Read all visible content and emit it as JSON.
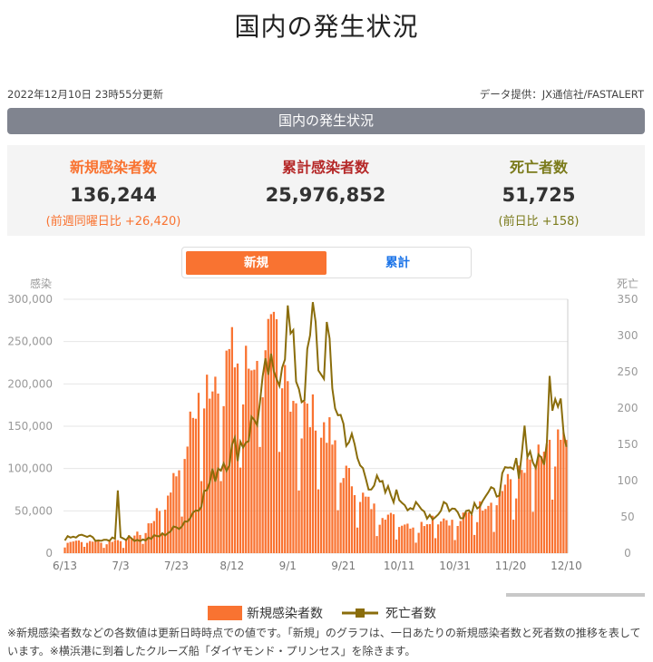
{
  "title": "国内の発生状況",
  "updated": "2022年12月10日 23時55分更新",
  "source": "データ提供：JX通信社/FASTALERT",
  "section_header": "国内の発生状況",
  "stats": {
    "new": {
      "label": "新規感染者数",
      "value": "136,244",
      "sub": "(前週同曜日比 +26,420)"
    },
    "total": {
      "label": "累計感染者数",
      "value": "25,976,852"
    },
    "deaths": {
      "label": "死亡者数",
      "value": "51,725",
      "sub": "(前日比 +158)"
    }
  },
  "tabs": {
    "new": "新規",
    "cumulative": "累計"
  },
  "legend": {
    "cases": "新規感染者数",
    "deaths": "死亡者数"
  },
  "footnote": "※新規感染者数などの各数値は更新日時時点での値です。「新規」のグラフは、一日あたりの新規感染者数と死者数の推移を表しています。※横浜港に到着したクルーズ船「ダイヤモンド・プリンセス」を除きます。",
  "colors": {
    "cases": "#f97331",
    "deaths": "#8a6d0b",
    "new_label": "#f97331",
    "total_label": "#b52828",
    "deaths_label": "#7a7a1a"
  },
  "chart_data": {
    "type": "bar+line",
    "left_axis_title": "感染",
    "right_axis_title": "死亡",
    "left_ticks": [
      "0",
      "50,000",
      "100,000",
      "150,000",
      "200,000",
      "250,000",
      "300,000"
    ],
    "left_ylim": [
      0,
      300000
    ],
    "right_ticks": [
      "0",
      "50",
      "100",
      "150",
      "200",
      "250",
      "300",
      "350"
    ],
    "right_ylim": [
      0,
      350
    ],
    "x_tick_labels": [
      "6/13",
      "7/3",
      "7/23",
      "8/12",
      "9/1",
      "9/21",
      "10/11",
      "10/31",
      "11/20",
      "12/10"
    ],
    "grid": true,
    "keypoints_cases": [
      [
        0,
        15000
      ],
      [
        7,
        15000
      ],
      [
        14,
        14000
      ],
      [
        21,
        16000
      ],
      [
        28,
        25000
      ],
      [
        35,
        55000
      ],
      [
        38,
        80000
      ],
      [
        42,
        110000
      ],
      [
        45,
        150000
      ],
      [
        49,
        195000
      ],
      [
        55,
        215000
      ],
      [
        60,
        235000
      ],
      [
        63,
        225000
      ],
      [
        67,
        220000
      ],
      [
        70,
        260000
      ],
      [
        74,
        255000
      ],
      [
        77,
        240000
      ],
      [
        80,
        200000
      ],
      [
        84,
        180000
      ],
      [
        88,
        160000
      ],
      [
        91,
        175000
      ],
      [
        95,
        140000
      ],
      [
        98,
        110000
      ],
      [
        102,
        90000
      ],
      [
        105,
        75000
      ],
      [
        109,
        60000
      ],
      [
        112,
        50000
      ],
      [
        116,
        45000
      ],
      [
        119,
        40000
      ],
      [
        123,
        35000
      ],
      [
        126,
        30000
      ],
      [
        130,
        38000
      ],
      [
        133,
        45000
      ],
      [
        137,
        40000
      ],
      [
        140,
        35000
      ],
      [
        144,
        45000
      ],
      [
        147,
        50000
      ],
      [
        151,
        60000
      ],
      [
        154,
        65000
      ],
      [
        158,
        80000
      ],
      [
        161,
        90000
      ],
      [
        165,
        95000
      ],
      [
        168,
        110000
      ],
      [
        172,
        120000
      ],
      [
        175,
        125000
      ],
      [
        179,
        130000
      ],
      [
        180,
        136244
      ]
    ],
    "keypoints_deaths": [
      [
        0,
        20
      ],
      [
        7,
        24
      ],
      [
        14,
        16
      ],
      [
        18,
        22
      ],
      [
        19,
        95
      ],
      [
        20,
        22
      ],
      [
        28,
        18
      ],
      [
        35,
        25
      ],
      [
        40,
        35
      ],
      [
        45,
        50
      ],
      [
        50,
        80
      ],
      [
        55,
        120
      ],
      [
        60,
        140
      ],
      [
        65,
        160
      ],
      [
        70,
        200
      ],
      [
        73,
        255
      ],
      [
        75,
        230
      ],
      [
        78,
        280
      ],
      [
        80,
        320
      ],
      [
        82,
        270
      ],
      [
        85,
        220
      ],
      [
        87,
        250
      ],
      [
        89,
        330
      ],
      [
        90,
        300
      ],
      [
        92,
        240
      ],
      [
        94,
        300
      ],
      [
        96,
        220
      ],
      [
        98,
        200
      ],
      [
        100,
        175
      ],
      [
        103,
        150
      ],
      [
        106,
        120
      ],
      [
        109,
        100
      ],
      [
        112,
        95
      ],
      [
        115,
        85
      ],
      [
        118,
        80
      ],
      [
        121,
        75
      ],
      [
        124,
        65
      ],
      [
        127,
        60
      ],
      [
        130,
        55
      ],
      [
        133,
        50
      ],
      [
        136,
        70
      ],
      [
        139,
        60
      ],
      [
        142,
        55
      ],
      [
        145,
        60
      ],
      [
        148,
        70
      ],
      [
        151,
        80
      ],
      [
        154,
        80
      ],
      [
        157,
        100
      ],
      [
        160,
        110
      ],
      [
        163,
        120
      ],
      [
        165,
        170
      ],
      [
        167,
        135
      ],
      [
        170,
        120
      ],
      [
        173,
        145
      ],
      [
        174,
        230
      ],
      [
        176,
        230
      ],
      [
        178,
        225
      ],
      [
        180,
        158
      ]
    ]
  }
}
